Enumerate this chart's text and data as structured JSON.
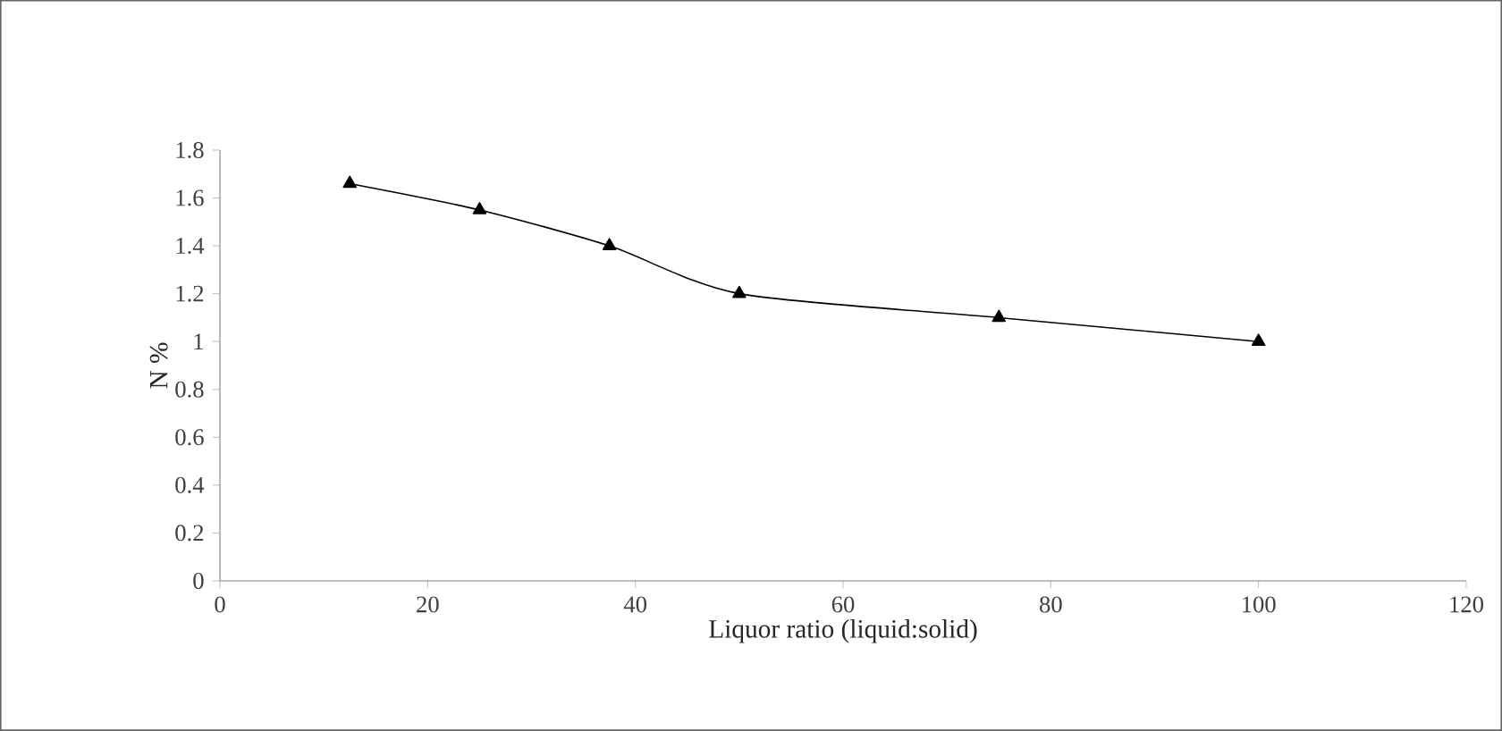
{
  "chart_data": {
    "type": "line",
    "xlabel": "Liquor ratio (liquid:solid)",
    "ylabel": "N %",
    "x": [
      12.5,
      25,
      37.5,
      50,
      75,
      100
    ],
    "series": [
      {
        "color": "#000000",
        "values": [
          1.66,
          1.55,
          1.4,
          1.2,
          1.1,
          1.0
        ]
      }
    ],
    "xlim": [
      0,
      120
    ],
    "xticks": [
      0,
      20,
      40,
      60,
      80,
      100,
      120
    ],
    "ylim": [
      0,
      1.8
    ],
    "yticks": [
      0,
      0.2,
      0.4,
      0.6,
      0.8,
      1,
      1.2,
      1.4,
      1.6,
      1.8
    ],
    "marker": "triangle",
    "line_style": "solid",
    "grid": false
  }
}
